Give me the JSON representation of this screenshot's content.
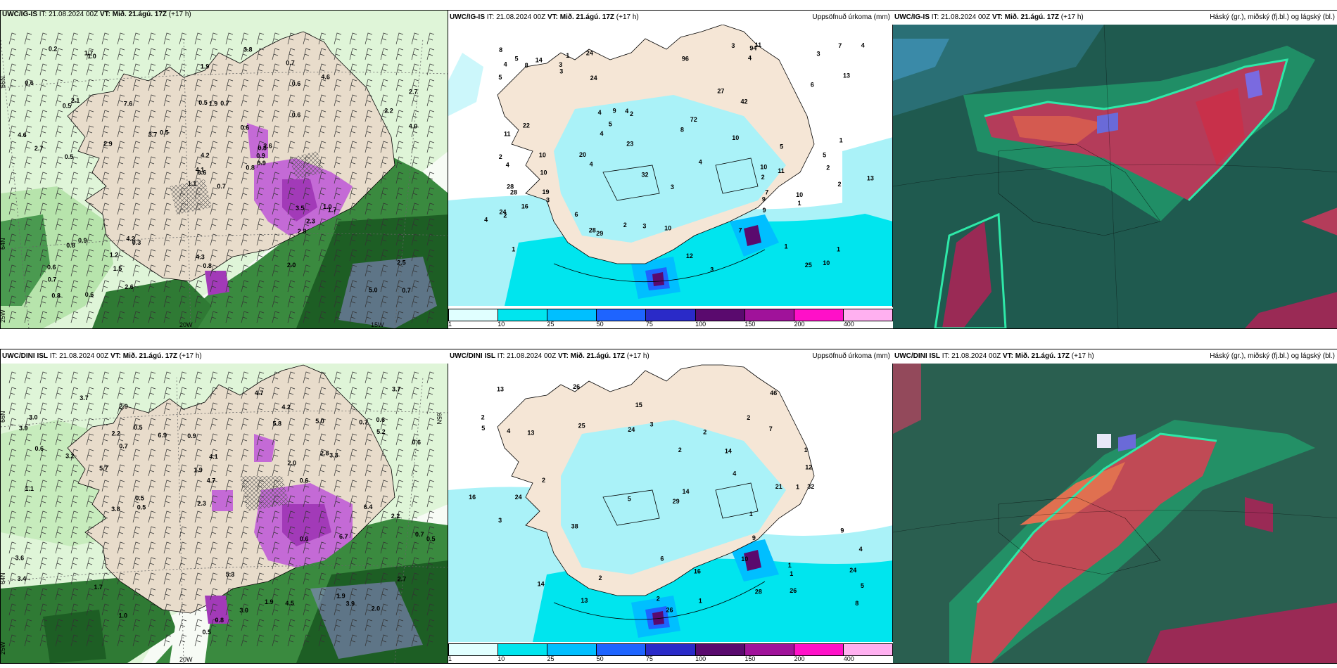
{
  "panels": {
    "top_left": {
      "model": "UWC/IG-IS",
      "it": "IT: 21.08.2024 00Z",
      "vt_label": "VT:",
      "vt": "Mið. 21.ágú. 17Z",
      "lead": "(+17 h)"
    },
    "top_mid": {
      "model": "UWC/IG-IS",
      "it": "IT: 21.08.2024 00Z",
      "vt_label": "VT:",
      "vt": "Mið. 21.ágú. 17Z",
      "lead": "(+17 h)",
      "title": "Uppsöfnuð úrkoma (mm)"
    },
    "top_right": {
      "model": "UWC/IG-IS",
      "it": "IT: 21.08.2024 00Z",
      "vt_label": "VT:",
      "vt": "Mið. 21.ágú. 17Z",
      "lead": "(+17 h)",
      "title": "Háský (gr.), miðský (fj.bl.) og lágský (bl.)"
    },
    "bot_left": {
      "model": "UWC/DINI ISL",
      "it": "IT: 21.08.2024 00Z",
      "vt_label": "VT:",
      "vt": "Mið. 21.ágú. 17Z",
      "lead": "(+17 h)"
    },
    "bot_mid": {
      "model": "UWC/DINI ISL",
      "it": "IT: 21.08.2024 00Z",
      "vt_label": "VT:",
      "vt": "Mið. 21.ágú. 17Z",
      "lead": "(+17 h)",
      "title": "Uppsöfnuð úrkoma (mm)"
    },
    "bot_right": {
      "model": "UWC/DINI ISL",
      "it": "IT: 21.08.2024 00Z",
      "vt_label": "VT:",
      "vt": "Mið. 21.ágú. 17Z",
      "lead": "(+17 h)",
      "title": "Háský (gr.), miðský (fj.bl.) og lágský (bl.)"
    }
  },
  "legend": {
    "ticks": [
      "1",
      "10",
      "25",
      "50",
      "75",
      "100",
      "150",
      "200",
      "400"
    ],
    "colors": [
      "#e0ffff",
      "#00e5ee",
      "#00bfff",
      "#1e64ff",
      "#2a2ac8",
      "#5a0a6e",
      "#a0129a",
      "#ff10c8",
      "#ffb0f0"
    ]
  },
  "grid_labels": {
    "lat66": "66N",
    "lat64": "64N",
    "lon25": "25W",
    "lon20": "20W",
    "lon15": "15W",
    "lat65": "65N"
  },
  "precip_top": [
    "2",
    "2",
    "1",
    "1",
    "2",
    "1",
    "2",
    "4",
    "4",
    "3",
    "5",
    "2",
    "4",
    "1",
    "2",
    "1",
    "3",
    "4",
    "4",
    "3",
    "4",
    "3",
    "4",
    "2",
    "3",
    "3",
    "7",
    "4",
    "3",
    "5",
    "12",
    "7",
    "5",
    "4",
    "5",
    "1",
    "9",
    "10",
    "10",
    "16",
    "13",
    "11",
    "10",
    "3",
    "10",
    "6",
    "4",
    "5",
    "10",
    "11",
    "13",
    "9",
    "7",
    "10",
    "9",
    "25",
    "42",
    "8",
    "10",
    "14",
    "11",
    "24",
    "72",
    "28",
    "96",
    "22",
    "32",
    "19",
    "20",
    "24",
    "27",
    "24",
    "23",
    "8",
    "8",
    "94",
    "28",
    "28",
    "29",
    "6"
  ],
  "precip_bot": [
    "2",
    "1",
    "2",
    "1",
    "2",
    "3",
    "1",
    "2",
    "2",
    "3",
    "1",
    "2",
    "1",
    "4",
    "5",
    "7",
    "4",
    "10",
    "16",
    "9",
    "5",
    "6",
    "4",
    "5",
    "12",
    "13",
    "13",
    "8",
    "14",
    "15",
    "14",
    "24",
    "46",
    "32",
    "38",
    "24",
    "26",
    "25",
    "28",
    "26",
    "29",
    "16",
    "21",
    "13",
    "14",
    "26",
    "24",
    "9",
    "2",
    "1"
  ],
  "wind_top": [
    "0.7",
    "0.5",
    "0.6",
    "0.6",
    "0.8",
    "0.3",
    "0.7",
    "0.7",
    "0.6",
    "0.8",
    "1.0",
    "0.7",
    "0.5",
    "2.7",
    "1.1",
    "0.6",
    "0.6",
    "0.5",
    "0.6",
    "0.9",
    "0.5",
    "0.7",
    "1.5",
    "1.9",
    "2.6",
    "1.7",
    "2.1",
    "1.9",
    "2.7",
    "3.5",
    "4.0",
    "4.1",
    "4.3",
    "4.2",
    "7.6",
    "4.6",
    "4.2",
    "5.0",
    "2.5",
    "1.0",
    "3.8",
    "3.7",
    "2.9",
    "2.8",
    "2.6",
    "4.6",
    "0.9",
    "0.8",
    "0.8",
    "0.9",
    "0.8",
    "2.2",
    "0.6",
    "2.3",
    "2.0",
    "1.2",
    "1.7",
    "0.2"
  ],
  "wind_bot": [
    "0.6",
    "0.7",
    "0.6",
    "0.8",
    "0.7",
    "0.5",
    "0.6",
    "0.5",
    "0.6",
    "0.5",
    "0.7",
    "0.5",
    "2.8",
    "1.7",
    "1.1",
    "1.0",
    "0.5",
    "0.9",
    "2.0",
    "1.9",
    "3.9",
    "2.2",
    "4.7",
    "5.3",
    "5.0",
    "5.7",
    "5.2",
    "4.2",
    "3.7",
    "3.8",
    "3.6",
    "4.5",
    "3.7",
    "3.2",
    "3.0",
    "2.9",
    "6.9",
    "5.8",
    "4.7",
    "3.4",
    "3.3",
    "2.2",
    "1.9",
    "1.9",
    "3.0",
    "0.6",
    "3.9",
    "6.4",
    "2.7",
    "6.7",
    "4.1",
    "2.0",
    "2.3"
  ]
}
